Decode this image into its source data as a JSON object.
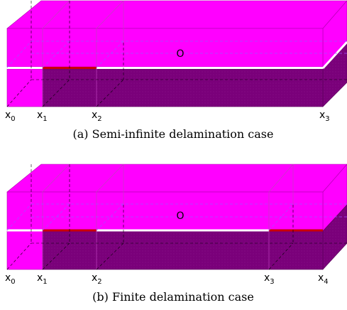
{
  "colors": {
    "magenta": "#ff00ff",
    "purple": "#7a007a",
    "delamination_red": "#cc0000",
    "interface_white": "#ffffff"
  },
  "panels": [
    {
      "region_label": "O",
      "positions": [
        {
          "base": "x",
          "sub": "0"
        },
        {
          "base": "x",
          "sub": "1"
        },
        {
          "base": "x",
          "sub": "2"
        },
        {
          "base": "x",
          "sub": "3"
        }
      ],
      "caption": "(a) Semi-infinite delamination case"
    },
    {
      "region_label": "O",
      "positions": [
        {
          "base": "x",
          "sub": "0"
        },
        {
          "base": "x",
          "sub": "1"
        },
        {
          "base": "x",
          "sub": "2"
        },
        {
          "base": "x",
          "sub": "3"
        },
        {
          "base": "x",
          "sub": "4"
        }
      ],
      "caption": "(b) Finite delamination case"
    }
  ]
}
